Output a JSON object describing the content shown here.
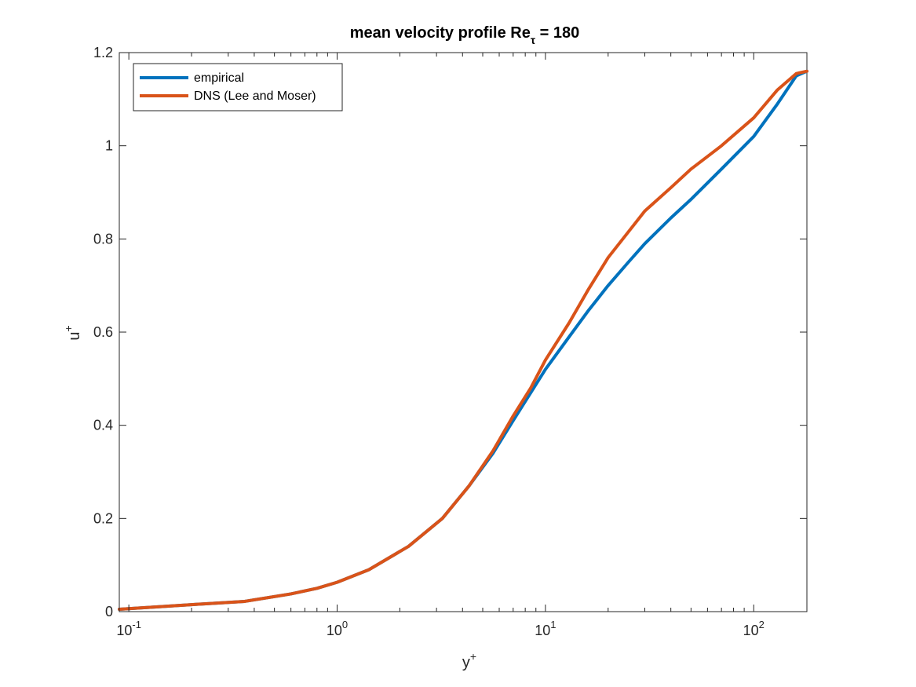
{
  "chart_data": {
    "type": "line",
    "title": {
      "main": "mean velocity profile Re",
      "sub": "τ",
      "suffix": " = 180"
    },
    "xlabel": {
      "base": "y",
      "sup": "+"
    },
    "ylabel": {
      "base": "u",
      "sup": "+"
    },
    "xscale": "log",
    "xlim": [
      0.09,
      180
    ],
    "ylim": [
      0,
      1.2
    ],
    "xticks": [
      {
        "value": 0.1,
        "base": "10",
        "exp": "-1"
      },
      {
        "value": 1,
        "base": "10",
        "exp": "0"
      },
      {
        "value": 10,
        "base": "10",
        "exp": "1"
      },
      {
        "value": 100,
        "base": "10",
        "exp": "2"
      }
    ],
    "yticks": [
      {
        "value": 0,
        "label": "0"
      },
      {
        "value": 0.2,
        "label": "0.2"
      },
      {
        "value": 0.4,
        "label": "0.4"
      },
      {
        "value": 0.6,
        "label": "0.6"
      },
      {
        "value": 0.8,
        "label": "0.8"
      },
      {
        "value": 1.0,
        "label": "1"
      },
      {
        "value": 1.2,
        "label": "1.2"
      }
    ],
    "grid": false,
    "box": true,
    "legend_position": "top-left",
    "series": [
      {
        "name": "empirical",
        "color": "#0072BD",
        "points": [
          [
            0.09,
            0.005
          ],
          [
            0.2,
            0.015
          ],
          [
            0.36,
            0.022
          ],
          [
            0.6,
            0.038
          ],
          [
            0.8,
            0.05
          ],
          [
            1.0,
            0.063
          ],
          [
            1.42,
            0.09
          ],
          [
            2.2,
            0.14
          ],
          [
            3.2,
            0.2
          ],
          [
            4.3,
            0.27
          ],
          [
            5.6,
            0.34
          ],
          [
            7,
            0.41
          ],
          [
            8.5,
            0.47
          ],
          [
            10,
            0.52
          ],
          [
            13,
            0.59
          ],
          [
            16,
            0.645
          ],
          [
            20,
            0.7
          ],
          [
            25,
            0.75
          ],
          [
            30,
            0.79
          ],
          [
            40,
            0.845
          ],
          [
            50,
            0.885
          ],
          [
            70,
            0.95
          ],
          [
            100,
            1.02
          ],
          [
            130,
            1.09
          ],
          [
            160,
            1.15
          ],
          [
            180,
            1.16
          ]
        ]
      },
      {
        "name": "DNS (Lee and Moser)",
        "color": "#D95319",
        "points": [
          [
            0.09,
            0.005
          ],
          [
            0.2,
            0.015
          ],
          [
            0.36,
            0.022
          ],
          [
            0.6,
            0.038
          ],
          [
            0.8,
            0.05
          ],
          [
            1.0,
            0.063
          ],
          [
            1.42,
            0.09
          ],
          [
            2.2,
            0.14
          ],
          [
            3.2,
            0.2
          ],
          [
            4.3,
            0.27
          ],
          [
            5.6,
            0.345
          ],
          [
            7,
            0.42
          ],
          [
            8.5,
            0.48
          ],
          [
            10,
            0.54
          ],
          [
            13,
            0.62
          ],
          [
            16,
            0.69
          ],
          [
            20,
            0.76
          ],
          [
            25,
            0.815
          ],
          [
            30,
            0.86
          ],
          [
            40,
            0.91
          ],
          [
            50,
            0.95
          ],
          [
            70,
            1.0
          ],
          [
            100,
            1.06
          ],
          [
            130,
            1.12
          ],
          [
            160,
            1.155
          ],
          [
            180,
            1.16
          ]
        ]
      }
    ]
  }
}
